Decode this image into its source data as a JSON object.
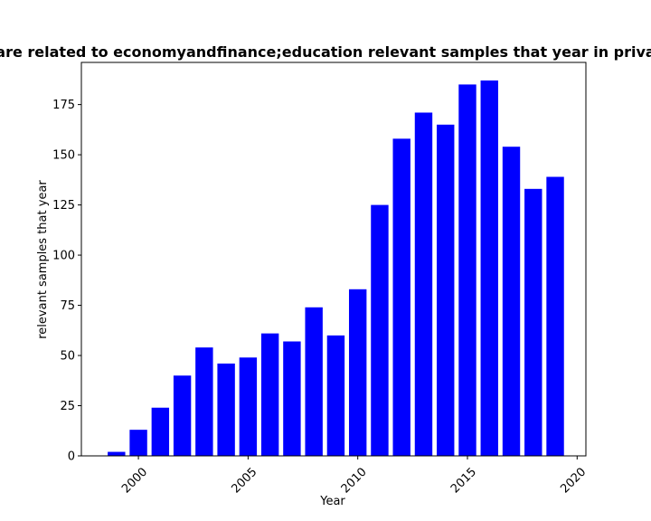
{
  "chart_data": {
    "type": "bar",
    "title": "are related to economyandfinance;education relevant samples that year in priva",
    "xlabel": "Year",
    "ylabel": "relevant samples that year",
    "x": [
      1999,
      2000,
      2001,
      2002,
      2003,
      2004,
      2005,
      2006,
      2007,
      2008,
      2009,
      2010,
      2011,
      2012,
      2013,
      2014,
      2015,
      2016,
      2017,
      2018,
      2019
    ],
    "values": [
      2,
      13,
      24,
      40,
      54,
      46,
      49,
      61,
      57,
      74,
      60,
      83,
      125,
      158,
      171,
      165,
      185,
      187,
      154,
      133,
      139
    ],
    "xlim": [
      1997.4,
      2020.4
    ],
    "ylim": [
      0,
      196
    ],
    "xticks": [
      2000,
      2005,
      2010,
      2015,
      2020
    ],
    "yticks": [
      0,
      25,
      50,
      75,
      100,
      125,
      150,
      175
    ],
    "bar_color": "#0000ff",
    "grid": false,
    "legend": "none"
  }
}
